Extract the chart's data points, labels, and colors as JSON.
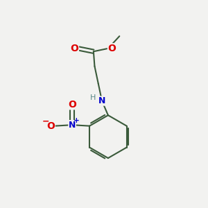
{
  "background_color": "#f2f2f0",
  "bond_color": "#3a5a3a",
  "atom_colors": {
    "O": "#dd0000",
    "N": "#0000cc",
    "H": "#5a8888",
    "C": "#3a5a3a"
  },
  "figsize": [
    3.0,
    3.0
  ],
  "dpi": 100
}
